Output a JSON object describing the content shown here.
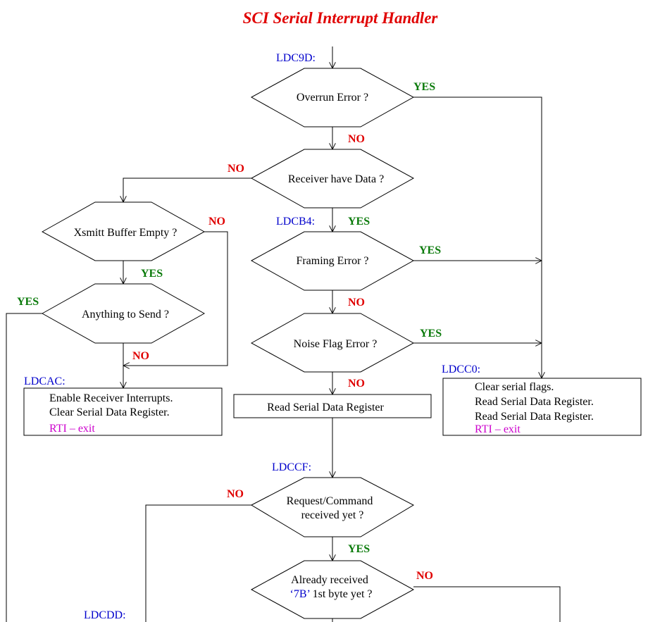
{
  "title": "SCI Serial Interrupt Handler",
  "labels": {
    "ldc9d": "LDC9D:",
    "ldcb4": "LDCB4:",
    "ldcac": "LDCAC:",
    "ldcc0": "LDCC0:",
    "ldccf": "LDCCF:",
    "ldcdd": "LDCDD:"
  },
  "decisions": {
    "overrun": "Overrun Error ?",
    "receiver": "Receiver have Data ?",
    "framing": "Framing Error ?",
    "noise": "Noise Flag Error ?",
    "xsmitt": "Xsmitt Buffer Empty ?",
    "anything": "Anything to Send ?",
    "request_l1": "Request/Command",
    "request_l2": "received yet ?",
    "already_l1": "Already received",
    "already_code": "‘7B’",
    "already_l2rest": " 1st byte yet ?"
  },
  "boxes": {
    "ldcac": {
      "line1": "Enable Receiver Interrupts.",
      "line2": "Clear Serial Data Register.",
      "exit": "RTI – exit"
    },
    "read": {
      "line1": "Read Serial Data Register"
    },
    "ldcc0": {
      "line1": "Clear serial flags.",
      "line2": "Read Serial Data Register.",
      "line3": "Read Serial Data Register.",
      "exit": "RTI – exit"
    }
  },
  "branches": {
    "yes": "YES",
    "no": "NO"
  }
}
